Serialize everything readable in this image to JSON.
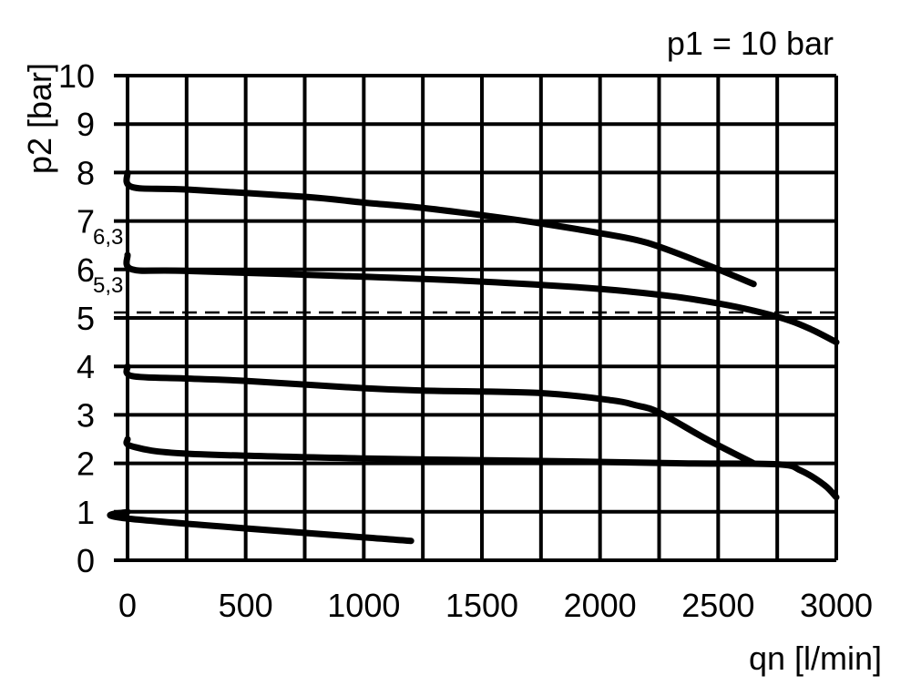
{
  "chart_data": {
    "type": "line",
    "title": "p1 = 10 bar",
    "xlabel": "qn [l/min]",
    "ylabel": "p2 [bar]",
    "xlim": [
      0,
      3000
    ],
    "ylim": [
      0,
      10
    ],
    "grid": true,
    "x_grid_step": 250,
    "y_grid_step": 1,
    "x_ticks": [
      0,
      500,
      1000,
      1500,
      2000,
      2500,
      3000
    ],
    "x_tick_labels": [
      "0",
      "500",
      "1000",
      "1500",
      "2000",
      "2500",
      "3000"
    ],
    "y_ticks": [
      0,
      1,
      2,
      3,
      4,
      5,
      6,
      7,
      8,
      9,
      10
    ],
    "y_tick_labels": [
      "0",
      "1",
      "2",
      "3",
      "4",
      "5",
      "6",
      "7",
      "8",
      "9",
      "10"
    ],
    "annotations": [
      {
        "text": "6,3",
        "y": 6.3
      },
      {
        "text": "5,3",
        "y": 5.3
      }
    ],
    "reference_lines": [
      {
        "y": 5.3,
        "style": "dashed"
      }
    ],
    "line_color": "#000000",
    "series": [
      {
        "x": [
          0,
          20,
          250,
          750,
          1000,
          1250,
          1500,
          1750,
          2000,
          2200,
          2450,
          2650
        ],
        "y": [
          8.0,
          7.7,
          7.65,
          7.5,
          7.38,
          7.27,
          7.12,
          6.95,
          6.75,
          6.55,
          6.1,
          5.7
        ]
      },
      {
        "x": [
          0,
          20,
          250,
          1000,
          1500,
          2000,
          2300,
          2500,
          2650,
          2800,
          2900,
          3000
        ],
        "y": [
          6.3,
          6.0,
          5.97,
          5.85,
          5.75,
          5.6,
          5.45,
          5.3,
          5.15,
          4.95,
          4.75,
          4.5
        ]
      },
      {
        "x": [
          0,
          20,
          250,
          500,
          1000,
          1250,
          1750,
          2050,
          2150,
          2250,
          2450,
          2650
        ],
        "y": [
          4.0,
          3.8,
          3.75,
          3.7,
          3.55,
          3.5,
          3.45,
          3.3,
          3.2,
          3.05,
          2.5,
          2.0
        ]
      },
      {
        "x": [
          0,
          20,
          250,
          1000,
          1750,
          2350,
          2750,
          2850,
          2950,
          3000
        ],
        "y": [
          2.5,
          2.35,
          2.2,
          2.1,
          2.05,
          2.0,
          1.98,
          1.85,
          1.55,
          1.3
        ]
      },
      {
        "x": [
          0,
          20,
          1200
        ],
        "y": [
          1.0,
          0.85,
          0.4
        ]
      }
    ]
  }
}
